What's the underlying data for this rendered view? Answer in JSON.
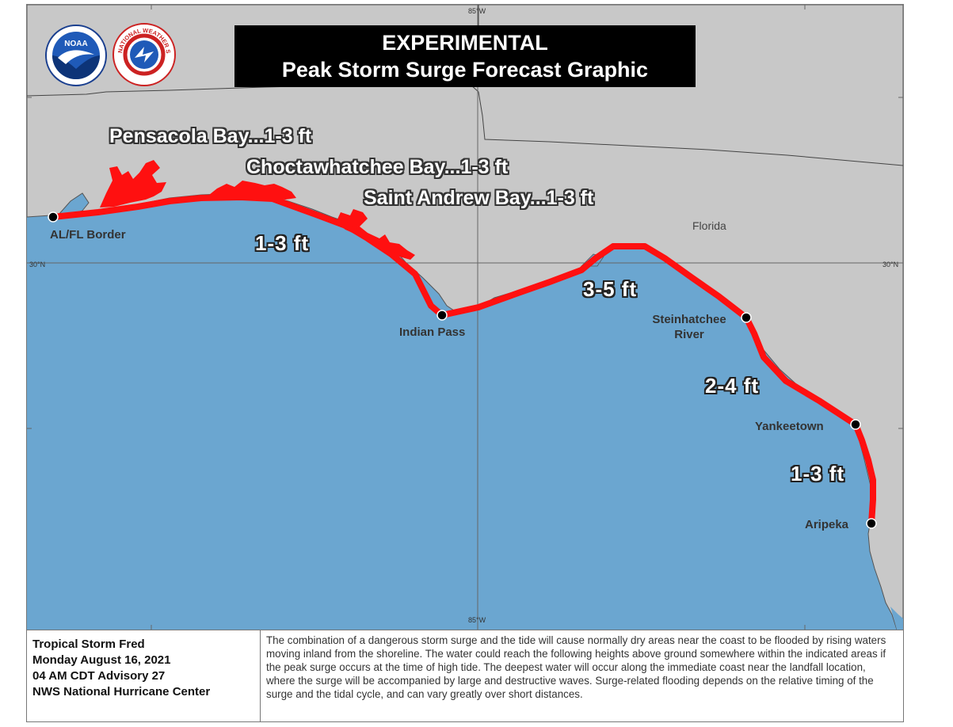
{
  "title": {
    "line1": "EXPERIMENTAL",
    "line2": "Peak Storm Surge Forecast Graphic"
  },
  "logos": {
    "noaa": {
      "text": "NOAA",
      "icon": "noaa-logo-icon"
    },
    "nws": {
      "text": "NATIONAL WEATHER SERVICE",
      "icon": "nws-logo-icon"
    }
  },
  "coordinates": {
    "top_lon": "85°W",
    "bottom_lon": "85°W",
    "left_lat": "30°N",
    "right_lat": "30°N"
  },
  "state_label": "Florida",
  "area_labels": [
    "Pensacola Bay...1-3 ft",
    "Choctawhatchee Bay...1-3 ft",
    "Saint Andrew Bay...1-3 ft"
  ],
  "surge_labels": [
    "1-3 ft",
    "3-5 ft",
    "2-4 ft",
    "1-3 ft"
  ],
  "places": {
    "al_fl": "AL/FL Border",
    "indian_pass": "Indian Pass",
    "steinhatchee_1": "Steinhatchee",
    "steinhatchee_2": "River",
    "yankeetown": "Yankeetown",
    "aripeka": "Aripeka"
  },
  "colors": {
    "water": "#6ba6d0",
    "land": "#c8c8c8",
    "surge": "#ff1010"
  },
  "footer": {
    "storm": "Tropical Storm Fred",
    "date": "Monday August 16, 2021",
    "advisory": "04 AM CDT Advisory 27",
    "center": "NWS National Hurricane Center",
    "description": "The combination of a dangerous storm surge and the tide will cause normally dry areas near the coast to be flooded by rising waters moving inland from the shoreline.  The water could reach the following heights above ground somewhere within the indicated areas if the peak surge occurs at the time of high tide.  The deepest water will occur along the immediate coast near the landfall location, where the surge will be accompanied by large and destructive waves.  Surge-related flooding depends on the relative timing of the surge and the tidal cycle, and can vary greatly over short distances."
  }
}
